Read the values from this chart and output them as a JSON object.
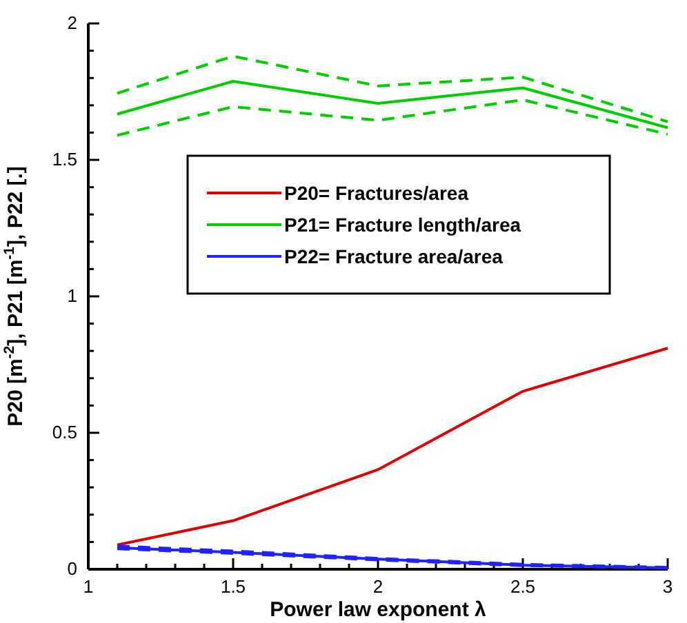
{
  "chart_data": {
    "type": "line",
    "xlabel": "Power law exponent λ",
    "ylabel": "P20 [m$^{-2}$],  P21 [m$^{-1}$],  P22 [.]",
    "x": [
      1.1,
      1.5,
      2,
      2.5,
      3
    ],
    "series": [
      {
        "name": "P20= Fractures/area",
        "color": "#dd0000",
        "values": [
          0.089,
          0.178,
          0.365,
          0.652,
          0.81
        ]
      },
      {
        "name": "P21= Fracture length/area",
        "color": "#00cc00",
        "values": [
          1.668,
          1.788,
          1.707,
          1.764,
          1.618
        ]
      },
      {
        "name": "P22= Fracture area/area",
        "color": "#2222ff",
        "values": [
          0.079,
          0.062,
          0.037,
          0.015,
          0.005
        ]
      },
      {
        "color": "#00cc00",
        "line_style": "dashed",
        "values": [
          1.59,
          1.695,
          1.645,
          1.72,
          1.594
        ]
      },
      {
        "color": "#00cc00",
        "line_style": "dashed",
        "values": [
          1.744,
          1.88,
          1.771,
          1.803,
          1.64
        ]
      },
      {
        "color": "#2222ff",
        "line_style": "dashed",
        "values": [
          0.075,
          0.058,
          0.034,
          0.013,
          0.004
        ]
      },
      {
        "color": "#2222ff",
        "line_style": "dashed",
        "values": [
          0.085,
          0.067,
          0.04,
          0.018,
          0.007
        ]
      }
    ],
    "xlim": [
      1,
      3
    ],
    "ylim": [
      0,
      2
    ],
    "xticks": [
      1,
      {
        "value": 1.1,
        "label": null
      },
      {
        "value": 1.2,
        "label": null
      },
      {
        "value": 1.3,
        "label": null
      },
      {
        "value": 1.4,
        "label": null
      },
      1.5,
      {
        "value": 1.6,
        "label": null
      },
      {
        "value": 1.7,
        "label": null
      },
      {
        "value": 1.8,
        "label": null
      },
      {
        "value": 1.9,
        "label": null
      },
      2,
      {
        "value": 2.1,
        "label": null
      },
      {
        "value": 2.2,
        "label": null
      },
      {
        "value": 2.3,
        "label": null
      },
      {
        "value": 2.4,
        "label": null
      },
      2.5,
      {
        "value": 2.6,
        "label": null
      },
      {
        "value": 2.7,
        "label": null
      },
      {
        "value": 2.8,
        "label": null
      },
      {
        "value": 2.9,
        "label": null
      },
      3
    ],
    "yticks": [
      0,
      {
        "value": 0.1,
        "label": null
      },
      {
        "value": 0.2,
        "label": null
      },
      {
        "value": 0.3,
        "label": null
      },
      {
        "value": 0.4,
        "label": null
      },
      0.5,
      {
        "value": 0.6,
        "label": null
      },
      {
        "value": 0.7,
        "label": null
      },
      {
        "value": 0.8,
        "label": null
      },
      {
        "value": 0.9,
        "label": null
      },
      1,
      {
        "value": 1.1,
        "label": null
      },
      {
        "value": 1.2,
        "label": null
      },
      {
        "value": 1.3,
        "label": null
      },
      {
        "value": 1.4,
        "label": null
      },
      1.5,
      {
        "value": 1.6,
        "label": null
      },
      {
        "value": 1.7,
        "label": null
      },
      {
        "value": 1.8,
        "label": null
      },
      {
        "value": 1.9,
        "label": null
      },
      2
    ],
    "legend": "center",
    "line_style": "solid",
    "grid": false
  }
}
